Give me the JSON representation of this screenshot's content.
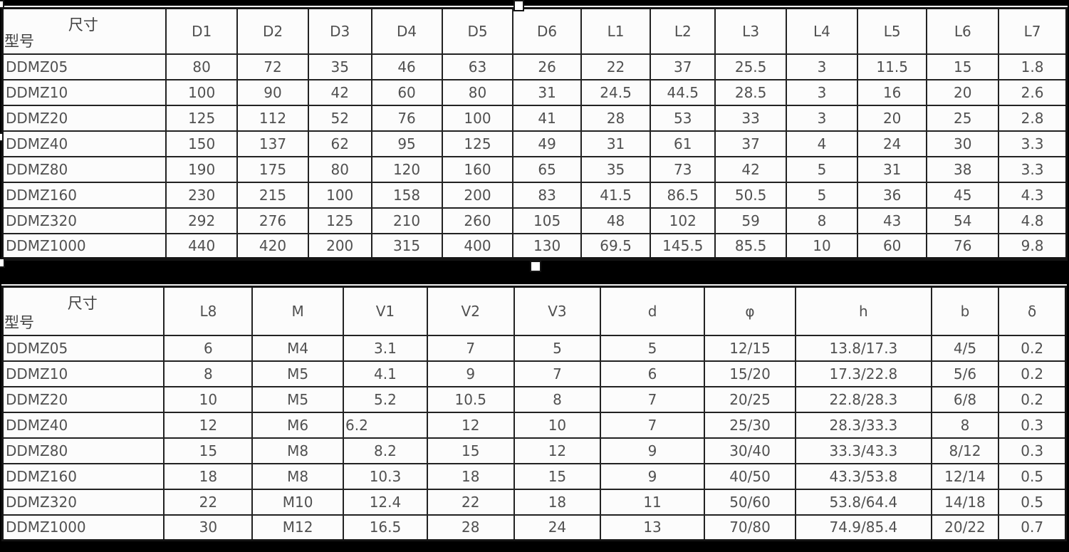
{
  "page": {
    "background_color": "#000000",
    "cell_background_color": "#fcfcfc",
    "grid_color": "#222222",
    "text_color": "#505050"
  },
  "table1": {
    "corner": {
      "top_label": "尺寸",
      "bottom_label": "型号"
    },
    "columns": [
      "D1",
      "D2",
      "D3",
      "D4",
      "D5",
      "D6",
      "L1",
      "L2",
      "L3",
      "L4",
      "L5",
      "L6",
      "L7"
    ],
    "col_widths": [
      "15.3%",
      "6.65%",
      "6.65%",
      "5.9%",
      "6.6%",
      "6.65%",
      "6.35%",
      "6.5%",
      "6.05%",
      "6.65%",
      "6.65%",
      "6.5%",
      "6.7%",
      "6.35%"
    ],
    "left_aligned_cells": [],
    "rows": [
      {
        "model": "DDMZ05",
        "values": [
          "80",
          "72",
          "35",
          "46",
          "63",
          "26",
          "22",
          "37",
          "25.5",
          "3",
          "11.5",
          "15",
          "1.8"
        ]
      },
      {
        "model": "DDMZ10",
        "values": [
          "100",
          "90",
          "42",
          "60",
          "80",
          "31",
          "24.5",
          "44.5",
          "28.5",
          "3",
          "16",
          "20",
          "2.6"
        ]
      },
      {
        "model": "DDMZ20",
        "values": [
          "125",
          "112",
          "52",
          "76",
          "100",
          "41",
          "28",
          "53",
          "33",
          "3",
          "20",
          "25",
          "2.8"
        ]
      },
      {
        "model": "DDMZ40",
        "values": [
          "150",
          "137",
          "62",
          "95",
          "125",
          "49",
          "31",
          "61",
          "37",
          "4",
          "24",
          "30",
          "3.3"
        ]
      },
      {
        "model": "DDMZ80",
        "values": [
          "190",
          "175",
          "80",
          "120",
          "160",
          "65",
          "35",
          "73",
          "42",
          "5",
          "31",
          "38",
          "3.3"
        ]
      },
      {
        "model": "DDMZ160",
        "values": [
          "230",
          "215",
          "100",
          "158",
          "200",
          "83",
          "41.5",
          "86.5",
          "50.5",
          "5",
          "36",
          "45",
          "4.3"
        ]
      },
      {
        "model": "DDMZ320",
        "values": [
          "292",
          "276",
          "125",
          "210",
          "260",
          "105",
          "48",
          "102",
          "59",
          "8",
          "43",
          "54",
          "4.8"
        ]
      },
      {
        "model": "DDMZ1000",
        "values": [
          "440",
          "420",
          "200",
          "315",
          "400",
          "130",
          "69.5",
          "145.5",
          "85.5",
          "10",
          "60",
          "76",
          "9.8"
        ]
      }
    ]
  },
  "table2": {
    "corner": {
      "top_label": "尺寸",
      "bottom_label": "型号"
    },
    "columns": [
      "L8",
      "M",
      "V1",
      "V2",
      "V3",
      "d",
      "φ",
      "h",
      "b",
      "δ"
    ],
    "col_widths": [
      "15.2%",
      "8.3%",
      "8.55%",
      "7.9%",
      "8.15%",
      "8.15%",
      "9.75%",
      "8.6%",
      "12.75%",
      "6.35%",
      "6.3%"
    ],
    "left_aligned_cells": [
      [
        3,
        2
      ]
    ],
    "rows": [
      {
        "model": "DDMZ05",
        "values": [
          "6",
          "M4",
          "3.1",
          "7",
          "5",
          "5",
          "12/15",
          "13.8/17.3",
          "4/5",
          "0.2"
        ]
      },
      {
        "model": "DDMZ10",
        "values": [
          "8",
          "M5",
          "4.1",
          "9",
          "7",
          "6",
          "15/20",
          "17.3/22.8",
          "5/6",
          "0.2"
        ]
      },
      {
        "model": "DDMZ20",
        "values": [
          "10",
          "M5",
          "5.2",
          "10.5",
          "8",
          "7",
          "20/25",
          "22.8/28.3",
          "6/8",
          "0.2"
        ]
      },
      {
        "model": "DDMZ40",
        "values": [
          "12",
          "M6",
          "6.2",
          "12",
          "10",
          "7",
          "25/30",
          "28.3/33.3",
          "8",
          "0.3"
        ]
      },
      {
        "model": "DDMZ80",
        "values": [
          "15",
          "M8",
          "8.2",
          "15",
          "12",
          "9",
          "30/40",
          "33.3/43.3",
          "8/12",
          "0.3"
        ]
      },
      {
        "model": "DDMZ160",
        "values": [
          "18",
          "M8",
          "10.3",
          "18",
          "15",
          "9",
          "40/50",
          "43.3/53.8",
          "12/14",
          "0.5"
        ]
      },
      {
        "model": "DDMZ320",
        "values": [
          "22",
          "M10",
          "12.4",
          "22",
          "18",
          "11",
          "50/60",
          "53.8/64.4",
          "14/18",
          "0.5"
        ]
      },
      {
        "model": "DDMZ1000",
        "values": [
          "30",
          "M12",
          "16.5",
          "28",
          "24",
          "13",
          "70/80",
          "74.9/85.4",
          "20/22",
          "0.7"
        ]
      }
    ]
  },
  "handles": [
    "top-left",
    "top-center",
    "left-middle",
    "bottom-left",
    "bottom-center"
  ]
}
